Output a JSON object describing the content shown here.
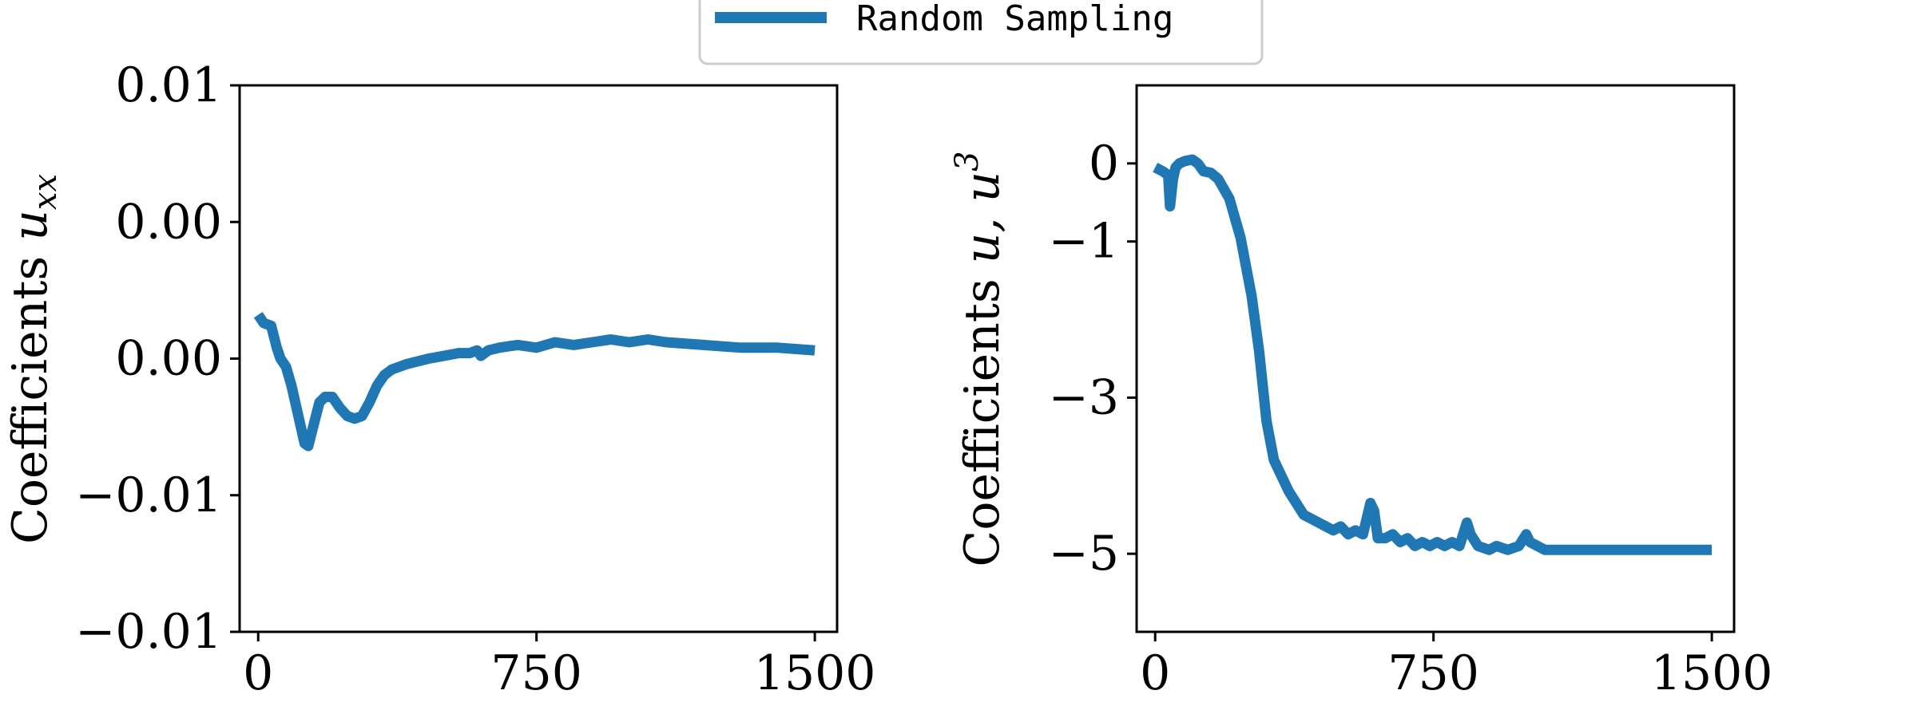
{
  "colors": {
    "series": "#1f77b4",
    "axis": "#000000",
    "legend_border": "#cccccc"
  },
  "legend": {
    "label": "Random Sampling",
    "placement": "top-center"
  },
  "chart_data": [
    {
      "type": "line",
      "ylabel": "Coefficients u_xx",
      "ylabel_text": "Coefficients ",
      "ylabel_math": "u",
      "ylabel_sub": "xx",
      "xlabel": "",
      "xlim": [
        -50,
        1560
      ],
      "ylim": [
        -0.01,
        0.01
      ],
      "xticks": [
        0,
        750,
        1500
      ],
      "xtick_labels": [
        "0",
        "750",
        "1500"
      ],
      "yticks": [
        0.01,
        0.005,
        0.0,
        -0.005,
        -0.01
      ],
      "ytick_labels": [
        "0.01",
        "0.00",
        "0.00",
        "−0.01",
        "−0.01"
      ],
      "grid": false,
      "series": [
        {
          "name": "Random Sampling",
          "x": [
            0,
            15,
            35,
            50,
            60,
            75,
            90,
            110,
            125,
            135,
            150,
            165,
            180,
            200,
            220,
            240,
            260,
            280,
            300,
            320,
            340,
            360,
            380,
            400,
            430,
            460,
            500,
            540,
            570,
            590,
            600,
            620,
            650,
            700,
            750,
            800,
            850,
            900,
            950,
            1000,
            1050,
            1100,
            1200,
            1300,
            1400,
            1500
          ],
          "y": [
            0.0016,
            0.0013,
            0.0012,
            0.0004,
            0.0,
            -0.0003,
            -0.001,
            -0.0022,
            -0.0031,
            -0.0032,
            -0.0024,
            -0.0016,
            -0.0014,
            -0.0014,
            -0.0018,
            -0.0021,
            -0.0022,
            -0.0021,
            -0.0016,
            -0.001,
            -0.0006,
            -0.0004,
            -0.0003,
            -0.0002,
            -0.0001,
            0.0,
            0.0001,
            0.0002,
            0.0002,
            0.0003,
            0.0001,
            0.0003,
            0.0004,
            0.0005,
            0.0004,
            0.0006,
            0.0005,
            0.0006,
            0.0007,
            0.0006,
            0.0007,
            0.0006,
            0.0005,
            0.0004,
            0.0004,
            0.0003
          ]
        }
      ]
    },
    {
      "type": "line",
      "ylabel": "Coefficients u, u^3",
      "ylabel_text": "Coefficients ",
      "ylabel_math": "u, u",
      "ylabel_sup": "3",
      "xlabel": "",
      "xlim": [
        -50,
        1560
      ],
      "ylim": [
        -6.0,
        1.0
      ],
      "xticks": [
        0,
        750,
        1500
      ],
      "xtick_labels": [
        "0",
        "750",
        "1500"
      ],
      "yticks": [
        0,
        -1,
        -3,
        -5
      ],
      "ytick_labels": [
        "0",
        "−1",
        "−3",
        "−5"
      ],
      "grid": false,
      "series": [
        {
          "name": "Random Sampling",
          "x": [
            0,
            20,
            35,
            40,
            48,
            55,
            65,
            80,
            100,
            115,
            130,
            150,
            170,
            200,
            230,
            260,
            280,
            300,
            320,
            340,
            360,
            380,
            400,
            420,
            440,
            460,
            480,
            500,
            520,
            540,
            560,
            580,
            590,
            600,
            620,
            640,
            660,
            680,
            700,
            720,
            740,
            760,
            780,
            800,
            820,
            840,
            850,
            870,
            900,
            920,
            950,
            980,
            1000,
            1010,
            1030,
            1050,
            1100,
            1200,
            1300,
            1400,
            1500
          ],
          "y": [
            -0.05,
            -0.1,
            -0.15,
            -0.55,
            -0.2,
            -0.05,
            0.0,
            0.03,
            0.05,
            0.0,
            -0.1,
            -0.12,
            -0.2,
            -0.45,
            -0.95,
            -1.7,
            -2.4,
            -3.3,
            -3.8,
            -4.0,
            -4.2,
            -4.35,
            -4.5,
            -4.55,
            -4.6,
            -4.65,
            -4.7,
            -4.65,
            -4.75,
            -4.7,
            -4.75,
            -4.35,
            -4.45,
            -4.8,
            -4.8,
            -4.75,
            -4.85,
            -4.8,
            -4.9,
            -4.85,
            -4.9,
            -4.85,
            -4.9,
            -4.85,
            -4.9,
            -4.6,
            -4.75,
            -4.9,
            -4.95,
            -4.9,
            -4.95,
            -4.9,
            -4.75,
            -4.85,
            -4.9,
            -4.95,
            -4.95,
            -4.95,
            -4.95,
            -4.95,
            -4.95
          ]
        }
      ]
    }
  ]
}
